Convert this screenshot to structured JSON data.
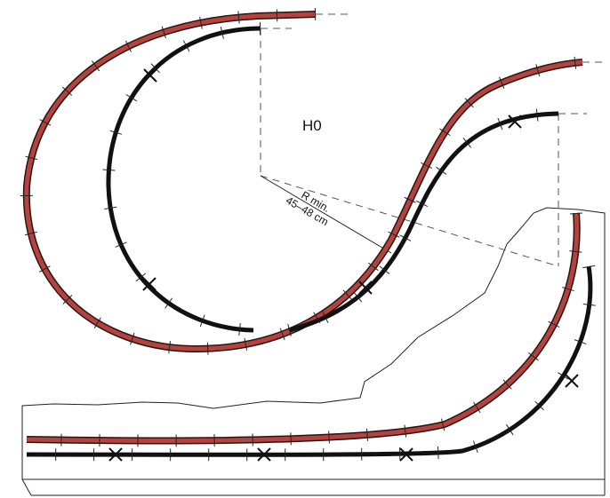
{
  "labels": {
    "scale": "H0",
    "radius_title": "R min.",
    "radius_value": "45–48 cm"
  }
}
